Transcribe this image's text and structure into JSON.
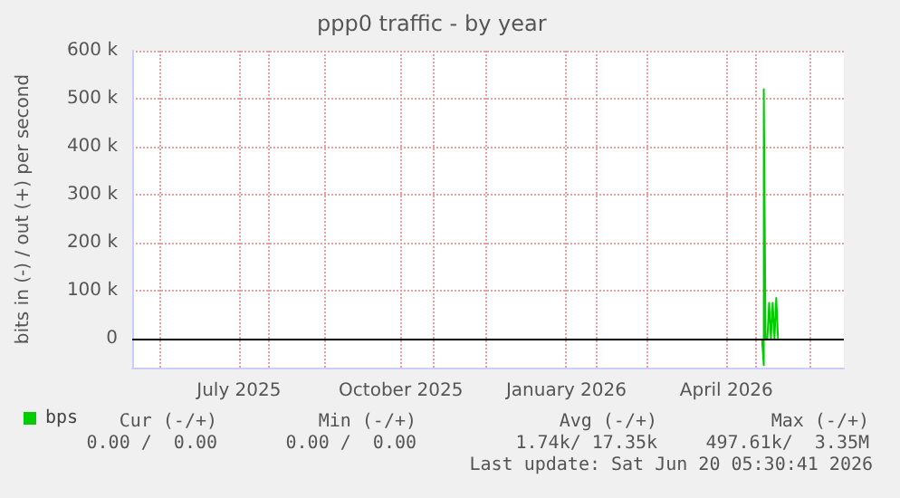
{
  "chart_data": {
    "type": "line",
    "title": "ppp0 traffic - by year",
    "ylabel": "bits in (-) / out (+) per second",
    "xlim": [
      "2025-05-16",
      "2026-06-20"
    ],
    "xticks": [
      {
        "value": "2025-06-01",
        "label": null
      },
      {
        "value": "2025-07-15",
        "label": "July 2025"
      },
      {
        "value": "2025-08-01",
        "label": null
      },
      {
        "value": "2025-09-01",
        "label": null
      },
      {
        "value": "2025-10-14",
        "label": "October 2025"
      },
      {
        "value": "2025-11-01",
        "label": null
      },
      {
        "value": "2025-12-01",
        "label": null
      },
      {
        "value": "2026-01-15",
        "label": "January 2026"
      },
      {
        "value": "2026-02-01",
        "label": null
      },
      {
        "value": "2026-03-01",
        "label": null
      },
      {
        "value": "2026-04-15",
        "label": "April 2026"
      },
      {
        "value": "2026-05-01",
        "label": null
      },
      {
        "value": "2026-06-01",
        "label": null
      }
    ],
    "ylim": [
      -60000,
      600000
    ],
    "yticks": [
      0,
      {
        "value": 100000,
        "label": "100 k"
      },
      {
        "value": 200000,
        "label": "200 k"
      },
      {
        "value": 300000,
        "label": "300 k"
      },
      {
        "value": 400000,
        "label": "400 k"
      },
      {
        "value": 500000,
        "label": "500 k"
      },
      {
        "value": 600000,
        "label": "600 k"
      }
    ],
    "grid": true,
    "legend": "bottom left",
    "marker": "none",
    "line_style": "solid",
    "ref_lines": [
      {
        "axis": "y",
        "value": 0,
        "color": "#000000"
      }
    ],
    "series": [
      {
        "name": "bps",
        "color": "#00cc00",
        "x": [
          "2026-05-05",
          "2026-05-06",
          "2026-05-06",
          "2026-05-07",
          "2026-05-08",
          "2026-05-09",
          "2026-05-10",
          "2026-05-11",
          "2026-05-12",
          "2026-05-13",
          "2026-05-14"
        ],
        "values": [
          0,
          -55000,
          520000,
          0,
          0,
          75000,
          0,
          75000,
          0,
          85000,
          0
        ]
      }
    ],
    "annotations": [
      "Cur (-/+)",
      "Min (-/+)",
      "Avg (-/+)",
      "Max (-/+)",
      "0.00 /  0.00",
      "0.00 /  0.00",
      "1.74k/ 17.35k",
      "497.61k/  3.35M",
      "Last update: Sat Jun 20 05:30:41 2026"
    ]
  }
}
